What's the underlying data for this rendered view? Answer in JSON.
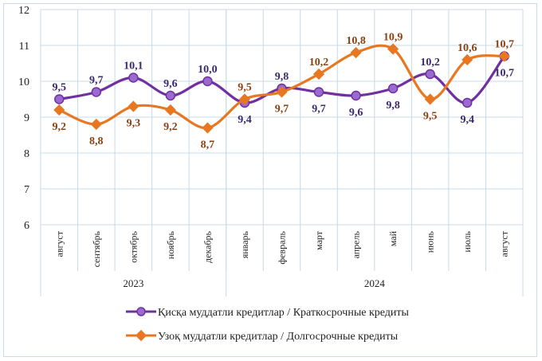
{
  "chart_data": {
    "type": "line",
    "title": "",
    "xlabel": "",
    "ylabel": "",
    "ylim": [
      6,
      12
    ],
    "yticks": [
      "6",
      "7",
      "8",
      "9",
      "10",
      "11",
      "12"
    ],
    "grid": true,
    "categories": [
      "август",
      "сентябрь",
      "октябрь",
      "ноябрь",
      "декабрь",
      "январь",
      "февраль",
      "март",
      "апрель",
      "май",
      "июнь",
      "июль",
      "август"
    ],
    "year_groups": [
      {
        "label": "2023",
        "count": 5
      },
      {
        "label": "2024",
        "count": 8
      }
    ],
    "series": [
      {
        "name": "Қисқа муддатли кредитлар  / Краткосрочные кредиты",
        "color": "#7030a0",
        "label_color": "#3b2a6e",
        "marker": "circle",
        "values": [
          9.5,
          9.7,
          10.1,
          9.6,
          10.0,
          9.4,
          9.8,
          9.7,
          9.6,
          9.8,
          10.2,
          9.4,
          10.7
        ],
        "labels": [
          "9,5",
          "9,7",
          "10,1",
          "9,6",
          "10,0",
          "9,4",
          "9,8",
          "9,7",
          "9,6",
          "9,8",
          "10,2",
          "9,4",
          "10,7"
        ]
      },
      {
        "name": "Узоқ муддатли  кредитлар  / Долгосрочные кредиты",
        "color": "#e87722",
        "label_color": "#8a4212",
        "marker": "diamond",
        "values": [
          9.2,
          8.8,
          9.3,
          9.2,
          8.7,
          9.5,
          9.7,
          10.2,
          10.8,
          10.9,
          9.5,
          10.6,
          10.7
        ],
        "labels": [
          "9,2",
          "8,8",
          "9,3",
          "9,2",
          "8,7",
          "9,5",
          "9,7",
          "10,2",
          "10,8",
          "10,9",
          "9,5",
          "10,6",
          "10,7"
        ]
      }
    ],
    "legend_position": "bottom"
  }
}
